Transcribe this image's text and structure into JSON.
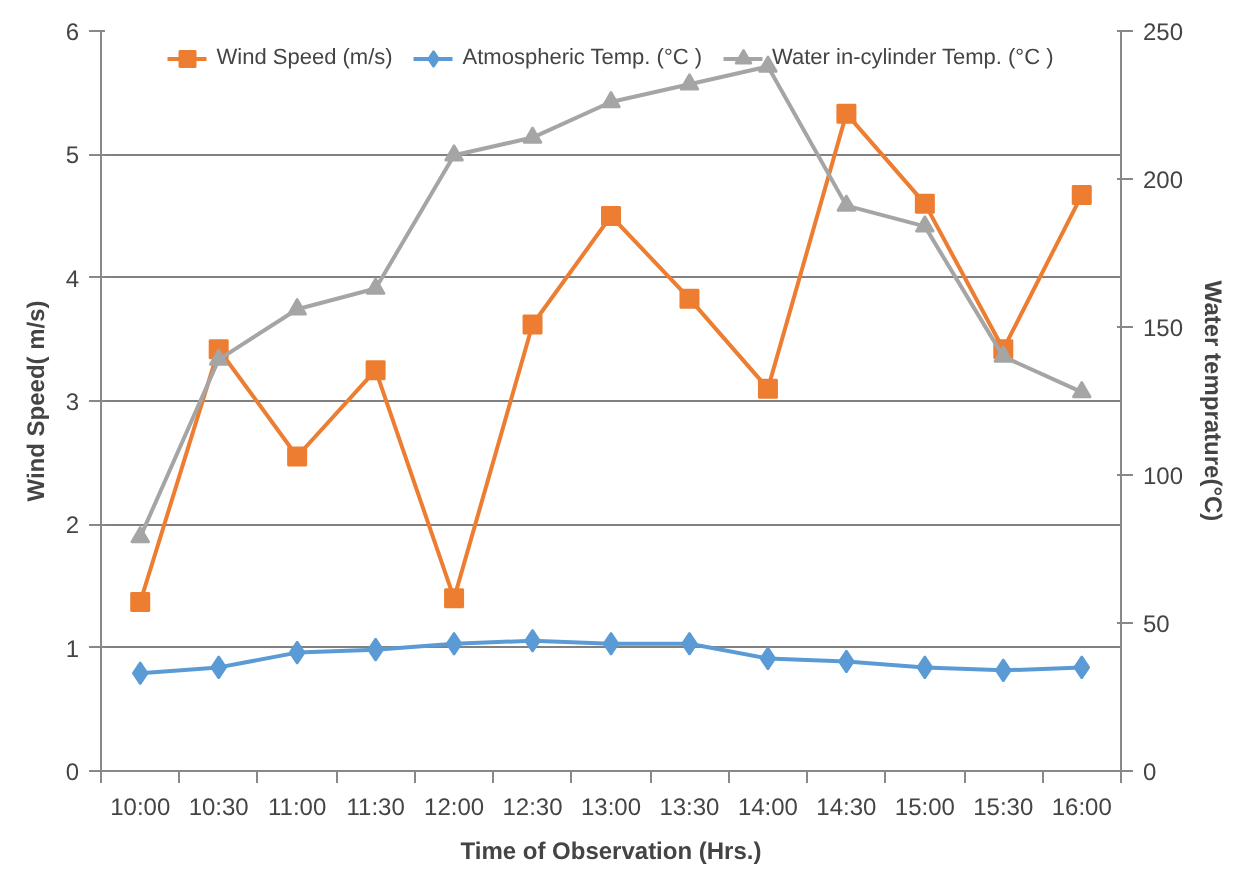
{
  "chart_data": {
    "type": "line",
    "xlabel": "Time of Observation (Hrs.)",
    "ylabel": "Wind Speed( m/s)",
    "y2label": "Water temprature(°C)",
    "categories": [
      "10:00",
      "10:30",
      "11:00",
      "11:30",
      "12:00",
      "12:30",
      "13:00",
      "13:30",
      "14:00",
      "14:30",
      "15:00",
      "15:30",
      "16:00"
    ],
    "series": [
      {
        "name": "Wind Speed (m/s)",
        "color": "#ed7d31",
        "marker": "square",
        "values": [
          1.37,
          3.42,
          2.55,
          3.25,
          1.4,
          3.62,
          4.5,
          3.83,
          3.1,
          5.33,
          4.6,
          3.42,
          4.67
        ]
      },
      {
        "name": "Atmospheric Temp. (°C )",
        "color": "#5b9bd5",
        "marker": "diamond",
        "axis": "y2",
        "values": [
          33,
          35,
          40,
          41,
          43,
          44,
          43,
          43,
          38,
          37,
          35,
          34,
          35
        ]
      },
      {
        "name": "Water in-cylinder Temp. (°C )",
        "color": "#a5a5a5",
        "marker": "triangle",
        "axis": "y2",
        "values": [
          79,
          139,
          156,
          163,
          208,
          214,
          226,
          232,
          238,
          191,
          184,
          140,
          128
        ]
      }
    ],
    "ylim": [
      0,
      6
    ],
    "yticks": [
      0,
      1,
      2,
      3,
      4,
      5,
      6
    ],
    "y2lim": [
      0,
      250
    ],
    "y2ticks": [
      0,
      50,
      100,
      150,
      200,
      250
    ],
    "grid": "y",
    "legend": "top"
  }
}
